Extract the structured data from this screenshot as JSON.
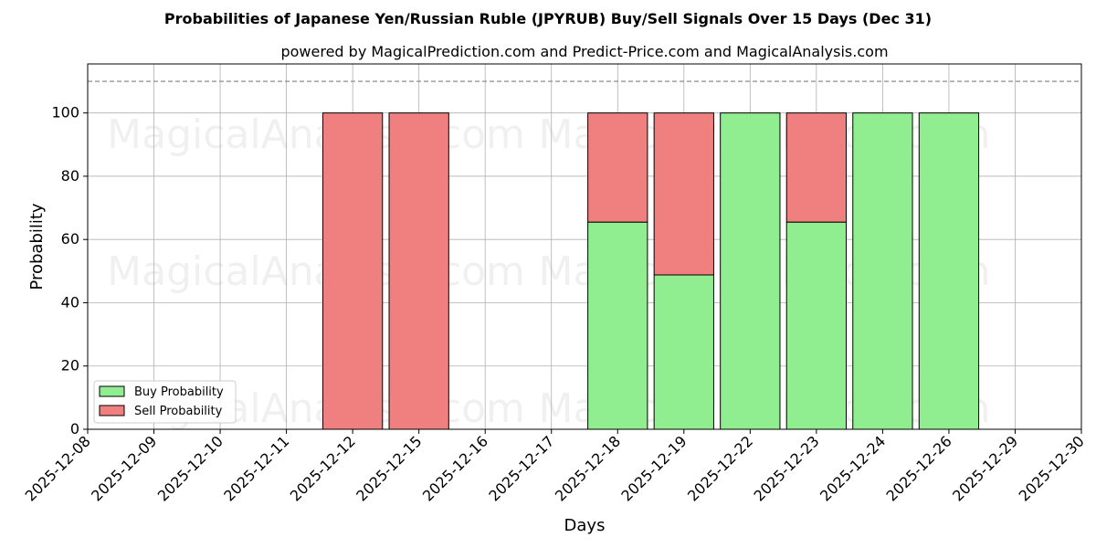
{
  "chart_data": {
    "type": "bar",
    "stacked": true,
    "title": "Probabilities of Japanese Yen/Russian Ruble (JPYRUB) Buy/Sell Signals Over 15 Days (Dec 31)",
    "subtitle": "powered by MagicalPrediction.com and Predict-Price.com and MagicalAnalysis.com",
    "xlabel": "Days",
    "ylabel": "Probability",
    "ylim": [
      0,
      115.5
    ],
    "yticks": [
      0,
      20,
      40,
      60,
      80,
      100
    ],
    "reference_line": 110,
    "grid": true,
    "legend_position": "lower-left",
    "categories": [
      "2025-12-08",
      "2025-12-09",
      "2025-12-10",
      "2025-12-11",
      "2025-12-12",
      "2025-12-15",
      "2025-12-16",
      "2025-12-17",
      "2025-12-18",
      "2025-12-19",
      "2025-12-22",
      "2025-12-23",
      "2025-12-24",
      "2025-12-26",
      "2025-12-29",
      "2025-12-30"
    ],
    "bars": [
      {
        "category": "2025-12-12",
        "buy": 0,
        "sell": 100
      },
      {
        "category": "2025-12-15",
        "buy": 0,
        "sell": 100
      },
      {
        "category": "2025-12-18",
        "buy": 65.5,
        "sell": 34.5
      },
      {
        "category": "2025-12-19",
        "buy": 48.8,
        "sell": 51.2
      },
      {
        "category": "2025-12-22",
        "buy": 100,
        "sell": 0
      },
      {
        "category": "2025-12-23",
        "buy": 65.5,
        "sell": 34.5
      },
      {
        "category": "2025-12-24",
        "buy": 100,
        "sell": 0
      },
      {
        "category": "2025-12-26",
        "buy": 100,
        "sell": 0
      }
    ],
    "series": [
      {
        "name": "Buy Probability",
        "color": "#90ee90"
      },
      {
        "name": "Sell Probability",
        "color": "#f08080"
      }
    ],
    "watermarks": [
      "MagicalAnalysis.com",
      "MagicalPrediction.com"
    ]
  }
}
